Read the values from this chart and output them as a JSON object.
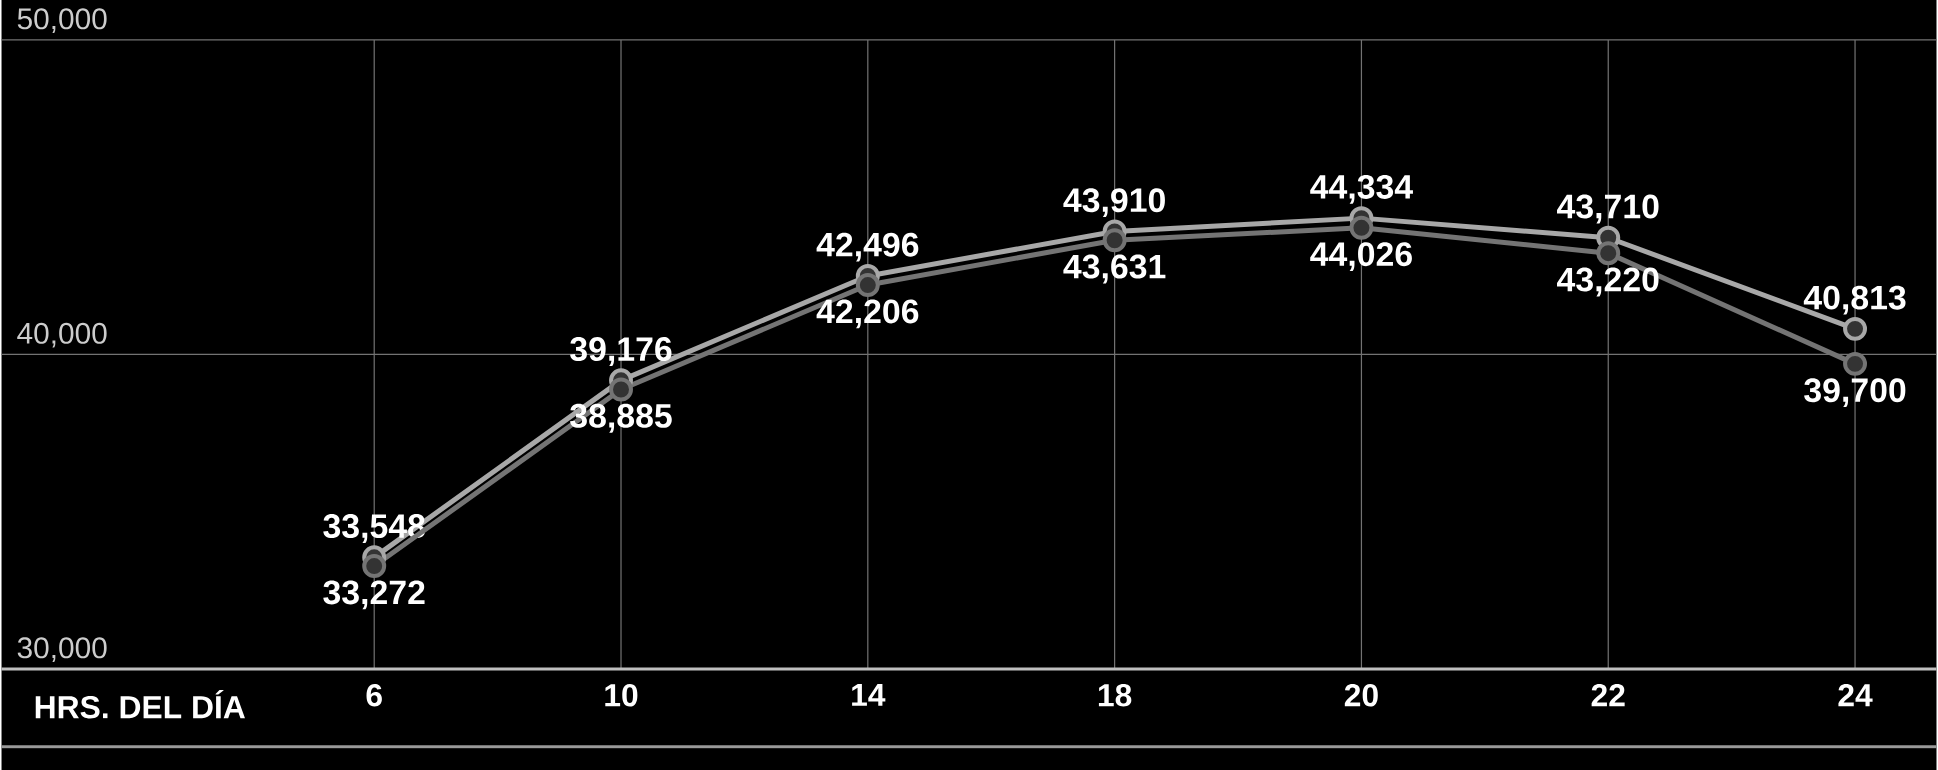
{
  "chart_data": {
    "type": "line",
    "xlabel": "HRS. DEL DÍA",
    "categories": [
      "6",
      "10",
      "14",
      "18",
      "20",
      "22",
      "24"
    ],
    "series": [
      {
        "color": "#a8a8a8",
        "values": [
          33548,
          39176,
          42496,
          43910,
          44334,
          43710,
          40813
        ],
        "value_labels": [
          "33,548",
          "39,176",
          "42,496",
          "43,910",
          "44,334",
          "43,710",
          "40,813"
        ]
      },
      {
        "color": "#747474",
        "values": [
          33272,
          38885,
          42206,
          43631,
          44026,
          43220,
          39700
        ],
        "value_labels": [
          "33,272",
          "38,885",
          "42,206",
          "43,631",
          "44,026",
          "43,220",
          "39,700"
        ]
      }
    ],
    "ylim": [
      30000,
      50000
    ],
    "yticks": [
      {
        "value": 30000,
        "label": "30,000"
      },
      {
        "value": 40000,
        "label": "40,000"
      },
      {
        "value": 50000,
        "label": "50,000"
      }
    ],
    "grid": true,
    "marker": "circle",
    "line_style": "solid"
  }
}
